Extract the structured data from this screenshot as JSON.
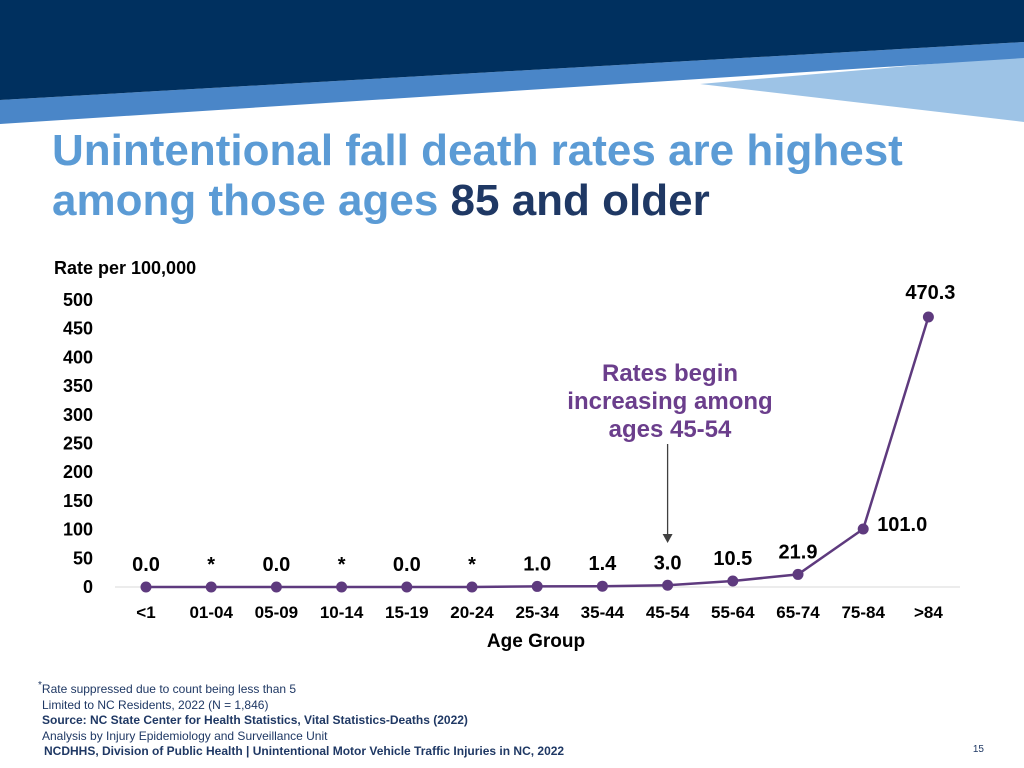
{
  "slide": {
    "title_part1": "Unintentional fall death rates are highest among those ages",
    "title_part2": "85 and older",
    "page_number": "15"
  },
  "colors": {
    "banner_dark": "#00305F",
    "banner_mid": "#4A86C8",
    "banner_light": "#9DC3E6",
    "title_light": "#5B9BD5",
    "title_dark": "#1F3864",
    "series_line": "#5E3A7E",
    "annotation": "#6B3E8C"
  },
  "chart_data": {
    "type": "line",
    "ylabel": "Rate per 100,000",
    "xlabel": "Age Group",
    "ylim": [
      0,
      500
    ],
    "yticks": [
      0,
      50,
      100,
      150,
      200,
      250,
      300,
      350,
      400,
      450,
      500
    ],
    "categories": [
      "<1",
      "01-04",
      "05-09",
      "10-14",
      "15-19",
      "20-24",
      "25-34",
      "35-44",
      "45-54",
      "55-64",
      "65-74",
      "75-84",
      ">84"
    ],
    "values": [
      0.0,
      0.0,
      0.0,
      0.0,
      0.0,
      0.0,
      1.0,
      1.4,
      3.0,
      10.5,
      21.9,
      101.0,
      470.3
    ],
    "data_labels": [
      "0.0",
      "*",
      "0.0",
      "*",
      "0.0",
      "*",
      "1.0",
      "1.4",
      "3.0",
      "10.5",
      "21.9",
      "101.0",
      "470.3"
    ],
    "grid": false,
    "annotation": {
      "text_lines": [
        "Rates begin",
        "increasing among",
        "ages 45-54"
      ],
      "points_to": "45-54"
    }
  },
  "footnotes": {
    "suppression": "Rate suppressed due to count being less than 5",
    "suppression_marker": "*",
    "population": "Limited to NC Residents, 2022 (N = 1,846)",
    "source": "Source: NC State Center for Health Statistics, Vital Statistics-Deaths (2022)",
    "analysis": "Analysis by Injury Epidemiology and Surveillance Unit"
  },
  "footer": {
    "organization": "NCDHHS, Division of Public Health | Unintentional Motor Vehicle Traffic Injuries in NC, 2022"
  }
}
